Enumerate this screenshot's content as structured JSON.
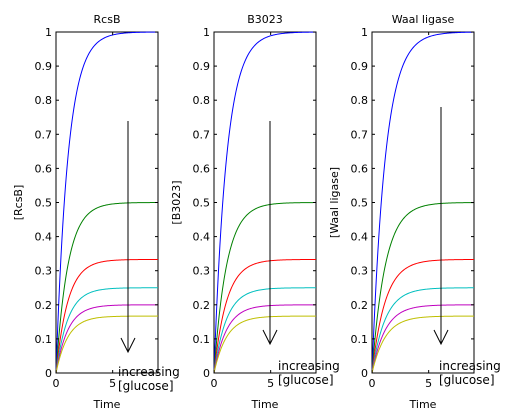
{
  "chart_data": [
    {
      "type": "line",
      "title": "RcsB",
      "xlabel": "Time",
      "ylabel": "[RcsB]",
      "xlim": [
        0,
        9
      ],
      "ylim": [
        0,
        1
      ],
      "xticks": [
        "0",
        "5"
      ],
      "yticks": [
        "0",
        "0.1",
        "0.2",
        "0.3",
        "0.4",
        "0.5",
        "0.6",
        "0.7",
        "0.8",
        "0.9",
        "1"
      ],
      "annotation": [
        "increasing",
        "[glucose]"
      ],
      "series": [
        {
          "plateau": 1.0,
          "rate": 0.95,
          "color": "#0000ff"
        },
        {
          "plateau": 0.5,
          "rate": 0.95,
          "color": "#008000"
        },
        {
          "plateau": 0.333,
          "rate": 0.95,
          "color": "#ff0000"
        },
        {
          "plateau": 0.25,
          "rate": 0.95,
          "color": "#00bfbf"
        },
        {
          "plateau": 0.2,
          "rate": 0.95,
          "color": "#bf00bf"
        },
        {
          "plateau": 0.167,
          "rate": 0.95,
          "color": "#bfbf00"
        }
      ]
    },
    {
      "type": "line",
      "title": "B3023",
      "xlabel": "Time",
      "ylabel": "[B3023]",
      "xlim": [
        0,
        9
      ],
      "ylim": [
        0,
        1
      ],
      "xticks": [
        "0",
        "5"
      ],
      "yticks": [
        "0",
        "0.1",
        "0.2",
        "0.3",
        "0.4",
        "0.5",
        "0.6",
        "0.7",
        "0.8",
        "0.9",
        "1"
      ],
      "annotation": [
        "increasing",
        "[glucose]"
      ],
      "series": [
        {
          "plateau": 1.0,
          "rate": 0.9,
          "color": "#0000ff"
        },
        {
          "plateau": 0.5,
          "rate": 0.9,
          "color": "#008000"
        },
        {
          "plateau": 0.333,
          "rate": 0.9,
          "color": "#ff0000"
        },
        {
          "plateau": 0.25,
          "rate": 0.9,
          "color": "#00bfbf"
        },
        {
          "plateau": 0.2,
          "rate": 0.9,
          "color": "#bf00bf"
        },
        {
          "plateau": 0.167,
          "rate": 0.9,
          "color": "#bfbf00"
        }
      ]
    },
    {
      "type": "line",
      "title": "Waal ligase",
      "xlabel": "Time",
      "ylabel": "[Waal ligase]",
      "xlim": [
        0,
        9
      ],
      "ylim": [
        0,
        1
      ],
      "xticks": [
        "0",
        "5"
      ],
      "yticks": [
        "0",
        "0.1",
        "0.2",
        "0.3",
        "0.4",
        "0.5",
        "0.6",
        "0.7",
        "0.8",
        "0.9",
        "1"
      ],
      "annotation": [
        "increasing",
        "[glucose]"
      ],
      "series": [
        {
          "plateau": 1.0,
          "rate": 0.85,
          "color": "#0000ff"
        },
        {
          "plateau": 0.5,
          "rate": 0.85,
          "color": "#008000"
        },
        {
          "plateau": 0.333,
          "rate": 0.85,
          "color": "#ff0000"
        },
        {
          "plateau": 0.25,
          "rate": 0.85,
          "color": "#00bfbf"
        },
        {
          "plateau": 0.2,
          "rate": 0.85,
          "color": "#bf00bf"
        },
        {
          "plateau": 0.167,
          "rate": 0.85,
          "color": "#bfbf00"
        }
      ]
    }
  ]
}
